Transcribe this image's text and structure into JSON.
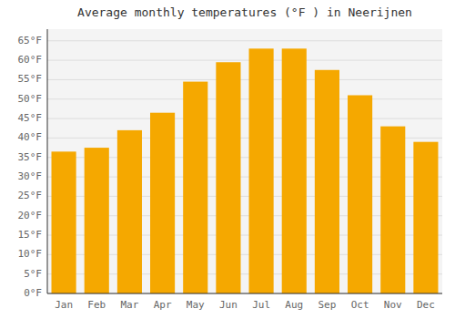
{
  "chart_data": {
    "type": "bar",
    "title": "Average monthly temperatures (°F ) in Neerijnen",
    "categories": [
      "Jan",
      "Feb",
      "Mar",
      "Apr",
      "May",
      "Jun",
      "Jul",
      "Aug",
      "Sep",
      "Oct",
      "Nov",
      "Dec"
    ],
    "values": [
      36.5,
      37.5,
      42,
      46.5,
      54.5,
      59.5,
      63,
      63,
      57.5,
      51,
      43,
      39
    ],
    "color": "#F5A800",
    "ylim": [
      0,
      68
    ],
    "yticks": [
      {
        "value": 0,
        "label": "0°F"
      },
      {
        "value": 5,
        "label": "5°F"
      },
      {
        "value": 10,
        "label": "10°F"
      },
      {
        "value": 15,
        "label": "15°F"
      },
      {
        "value": 20,
        "label": "20°F"
      },
      {
        "value": 25,
        "label": "25°F"
      },
      {
        "value": 30,
        "label": "30°F"
      },
      {
        "value": 35,
        "label": "35°F"
      },
      {
        "value": 40,
        "label": "40°F"
      },
      {
        "value": 45,
        "label": "45°F"
      },
      {
        "value": 50,
        "label": "50°F"
      },
      {
        "value": 55,
        "label": "55°F"
      },
      {
        "value": 60,
        "label": "60°F"
      },
      {
        "value": 65,
        "label": "65°F"
      }
    ],
    "grid": true
  }
}
